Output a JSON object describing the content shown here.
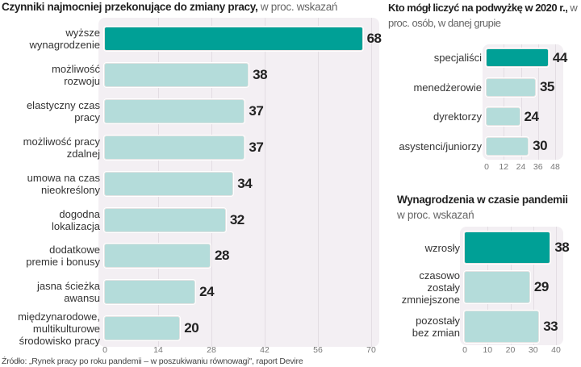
{
  "colors": {
    "highlight": "#00a096",
    "normal": "#b4dcda"
  },
  "chart_data": [
    {
      "type": "bar",
      "title": "Czynniki najmocniej przekonujące do zmiany pracy,",
      "subtitle": " w proc. wskazań",
      "categories": [
        "wyższe\nwynagrodzenie",
        "możliwość\nrozwoju",
        "elastyczny czas\npracy",
        "możliwość pracy\nzdalnej",
        "umowa na czas\nnieokreślony",
        "dogodna\nlokalizacja",
        "dodatkowe\npremie i bonusy",
        "jasna ścieżka\nawansu",
        "międzynarodowe,\nmultikulturowe\nśrodowisko pracy"
      ],
      "values": [
        68,
        38,
        37,
        37,
        34,
        32,
        28,
        24,
        20
      ],
      "highlight": [
        0
      ],
      "xlim": [
        0,
        70
      ],
      "ticks": [
        "0",
        "14",
        "28",
        "42",
        "56",
        "70"
      ]
    },
    {
      "type": "bar",
      "title": "Kto mógł liczyć na podwyżkę w 2020 r.,",
      "subtitle": " w proc. osób, w danej grupie",
      "categories": [
        "specjaliści",
        "menedżerowie",
        "dyrektorzy",
        "asystenci/juniorzy"
      ],
      "values": [
        44,
        35,
        24,
        30
      ],
      "highlight": [
        0
      ],
      "xlim": [
        0,
        48
      ],
      "ticks": [
        "0",
        "12",
        "24",
        "36",
        "48"
      ]
    },
    {
      "type": "bar",
      "title": "Wynagrodzenia w czasie pandemii",
      "subtitle": "w proc. wskazań",
      "categories": [
        "wzrosły",
        "czasowo\nzostały\nzmniejszone",
        "pozostały\nbez zmian"
      ],
      "values": [
        38,
        29,
        33
      ],
      "highlight": [
        0
      ],
      "xlim": [
        0,
        40
      ],
      "ticks": [
        "0",
        "10",
        "20",
        "30",
        "40"
      ]
    }
  ],
  "source": "Źródło: „Rynek pracy po roku pandemii – w poszukiwaniu równowagi\", raport Devire"
}
